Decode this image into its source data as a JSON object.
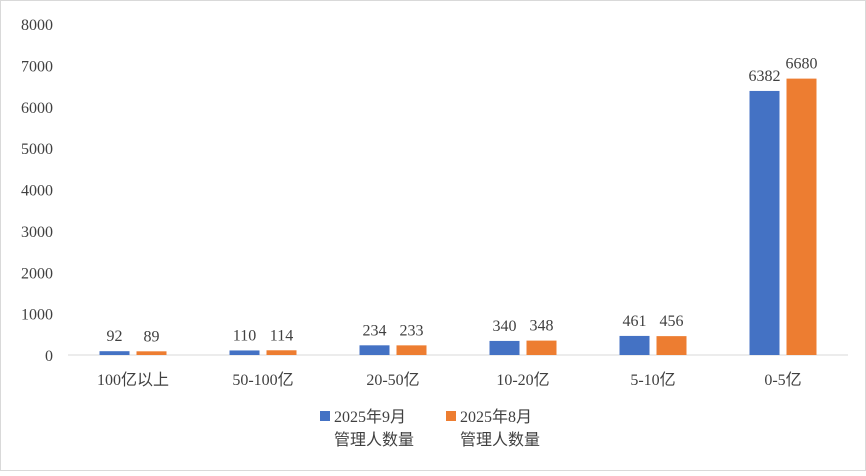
{
  "chart_data": {
    "type": "bar",
    "categories": [
      "100亿以上",
      "50-100亿",
      "20-50亿",
      "10-20亿",
      "5-10亿",
      "0-5亿"
    ],
    "series": [
      {
        "name": [
          "2025年9月",
          "管理人数量"
        ],
        "color": "#4472c4",
        "values": [
          92,
          110,
          234,
          340,
          461,
          6382
        ]
      },
      {
        "name": [
          "2025年8月",
          "管理人数量"
        ],
        "color": "#ed7d31",
        "values": [
          89,
          114,
          233,
          348,
          456,
          6680
        ]
      }
    ],
    "ylim": [
      0,
      8000
    ],
    "yticks": [
      0,
      1000,
      2000,
      3000,
      4000,
      5000,
      6000,
      7000,
      8000
    ],
    "grid": false,
    "data_labels": true,
    "legend_position": "bottom"
  }
}
